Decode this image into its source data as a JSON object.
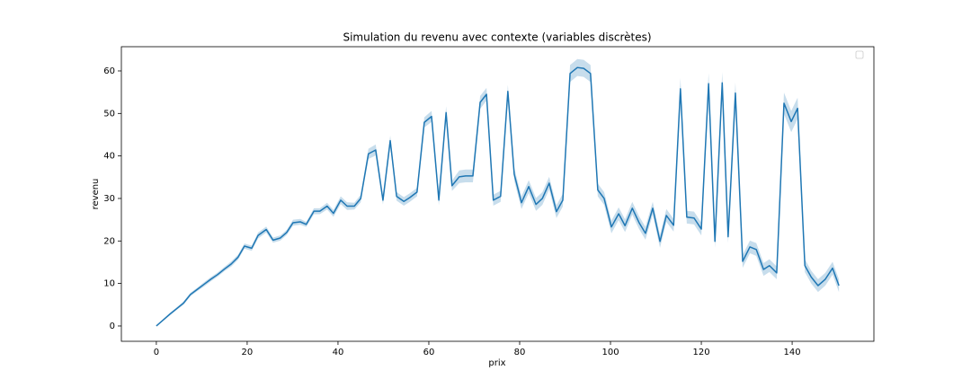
{
  "chart_data": {
    "type": "line",
    "title": "Simulation du revenu avec contexte (variables discrètes)",
    "xlabel": "prix",
    "ylabel": "revenu",
    "x": [
      0,
      1.5,
      3,
      4.5,
      6,
      7.5,
      9,
      10.5,
      12,
      13.5,
      15,
      16.5,
      18,
      19.4,
      21,
      22.4,
      24.2,
      25.7,
      27.3,
      28.7,
      30.1,
      31.7,
      33,
      34.7,
      36,
      37.6,
      39,
      40.6,
      42,
      43.6,
      45,
      46.7,
      48.3,
      49.9,
      51.5,
      52.9,
      54.5,
      55.8,
      57.4,
      59,
      60.6,
      62.2,
      63.8,
      65.1,
      66.7,
      68.1,
      69.7,
      71.3,
      72.7,
      74.2,
      75.8,
      77.4,
      78.8,
      80.4,
      82,
      83.6,
      85,
      86.5,
      88.1,
      89.5,
      91.1,
      92.7,
      94.1,
      95.6,
      97.2,
      98.6,
      100.2,
      101.8,
      103.2,
      104.8,
      106.3,
      107.7,
      109.3,
      110.9,
      112.3,
      113.9,
      115.4,
      116.8,
      118.4,
      120,
      121.6,
      123,
      124.6,
      125.9,
      127.5,
      129.1,
      130.7,
      132.1,
      133.7,
      135,
      136.6,
      138.2,
      139.8,
      141.2,
      142.8,
      144.2,
      145.7,
      147.3,
      148.9,
      150.3
    ],
    "series": [
      {
        "color": "#1f77b4",
        "values": [
          0,
          1.4,
          2.8,
          4.1,
          5.4,
          7.4,
          8.6,
          9.8,
          11,
          12.1,
          13.4,
          14.6,
          16.2,
          18.8,
          18.3,
          21.3,
          22.7,
          20.2,
          20.7,
          22,
          24.3,
          24.5,
          23.9,
          27,
          27,
          28.2,
          26.5,
          29.6,
          28.2,
          28.2,
          30,
          40.5,
          41.4,
          29.6,
          43.6,
          30.5,
          29.3,
          30.2,
          31.5,
          47.9,
          49.3,
          29.6,
          50.2,
          33,
          35.1,
          35.3,
          35.3,
          52.6,
          54.5,
          29.6,
          30.5,
          55.2,
          35.7,
          29,
          32.8,
          28.6,
          30,
          33.6,
          26.9,
          29.6,
          59.4,
          60.8,
          60.6,
          59.4,
          32,
          30,
          23.3,
          26.4,
          23.6,
          27.7,
          24.3,
          21.8,
          27.7,
          19.9,
          26,
          23.7,
          55.8,
          25.6,
          25.4,
          22.8,
          57,
          19.9,
          57.2,
          21,
          54.8,
          15.2,
          18.6,
          18,
          13.3,
          14.2,
          12.5,
          52.4,
          48.1,
          51.2,
          14.2,
          11.5,
          9.5,
          11,
          13.6,
          9.5
        ],
        "errors": [
          0,
          0.2,
          0.3,
          0.3,
          0.4,
          0.4,
          0.4,
          0.5,
          0.5,
          0.5,
          0.5,
          0.6,
          0.6,
          0.6,
          0.6,
          0.7,
          0.7,
          0.6,
          0.6,
          0.6,
          0.7,
          0.7,
          0.6,
          0.7,
          0.7,
          0.8,
          0.8,
          0.9,
          0.9,
          0.8,
          0.9,
          1.2,
          1.3,
          1,
          1.2,
          1,
          1,
          1,
          1,
          1.2,
          1.3,
          1.2,
          1.5,
          1.2,
          1.5,
          1.5,
          1.5,
          1.5,
          1.5,
          1.3,
          1.3,
          1.5,
          1.5,
          1.5,
          1.5,
          1.5,
          1.5,
          1.5,
          1.5,
          1.5,
          2,
          2,
          2,
          2,
          1.5,
          1.5,
          1.5,
          1.5,
          1.5,
          1.5,
          1.5,
          1.5,
          1.5,
          1.5,
          1.5,
          1.5,
          2.5,
          1.5,
          1.5,
          1.5,
          2.5,
          1.5,
          2.5,
          1.5,
          2.5,
          1.5,
          1.5,
          1.5,
          1.5,
          1.5,
          1.5,
          2.5,
          2.5,
          2.5,
          1.5,
          1.5,
          1.5,
          1.5,
          1.5,
          1.5
        ]
      }
    ],
    "xlim": [
      -7.7,
      158
    ],
    "ylim": [
      -3.6,
      65.7
    ],
    "xticks": [
      0,
      20,
      40,
      60,
      80,
      100,
      120,
      140
    ],
    "yticks": [
      0,
      10,
      20,
      30,
      40,
      50,
      60
    ],
    "legend": "upper right"
  }
}
